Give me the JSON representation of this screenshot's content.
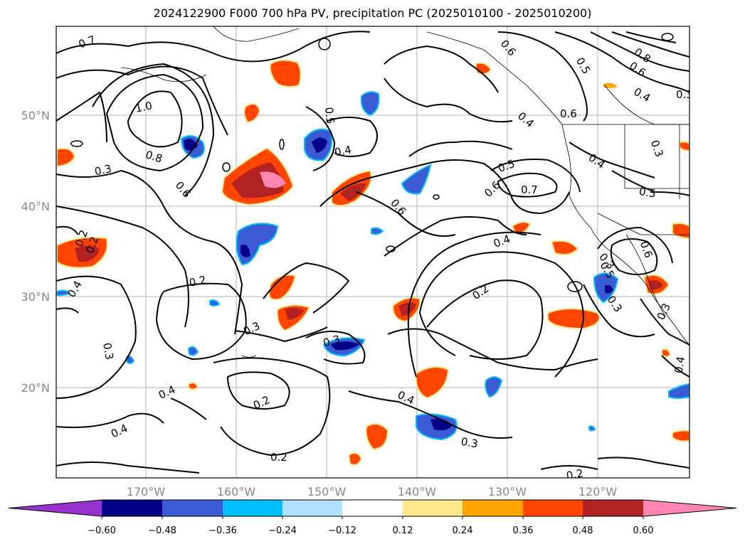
{
  "title": "2024122900 F000 700 hPa PV, precipitation PC (2025010100 - 2025010200)",
  "map": {
    "lat_labels": [
      "50°N",
      "40°N",
      "30°N",
      "20°N"
    ],
    "lon_labels": [
      "170°W",
      "160°W",
      "150°W",
      "140°W",
      "130°W",
      "120°W"
    ],
    "contour_labels": [
      "0.7",
      "1.0",
      "0.8",
      "0.6",
      "0.3",
      "0.5",
      "0.4",
      "0.6",
      "0.8",
      "0.6",
      "0.5",
      "0.4",
      "0.6",
      "0.6",
      "0.4",
      "0.5",
      "0.7",
      "0.6",
      "0.4",
      "0.5",
      "0.4",
      "0.6",
      "0.3",
      "0.2",
      "0.3",
      "0.3",
      "0.2",
      "0.3",
      "0.4",
      "0.2",
      "0.4",
      "0.3",
      "0.2",
      "0.2",
      "0.3",
      "0.4",
      "0.3",
      "0.3",
      "0.4",
      "0.2",
      "0.2",
      "0.3",
      "0.4",
      "0.5"
    ]
  },
  "colorbar": {
    "ticks": [
      "−0.60",
      "−0.48",
      "−0.36",
      "−0.24",
      "−0.12",
      "0.12",
      "0.24",
      "0.36",
      "0.48",
      "0.60"
    ],
    "colors": [
      "#9932cc",
      "#00008b",
      "#3a5bd1",
      "#00bfff",
      "#b0e2ff",
      "#ffffff",
      "#ffe98a",
      "#ffa500",
      "#ff4500",
      "#b22222",
      "#ff85b3"
    ]
  }
}
